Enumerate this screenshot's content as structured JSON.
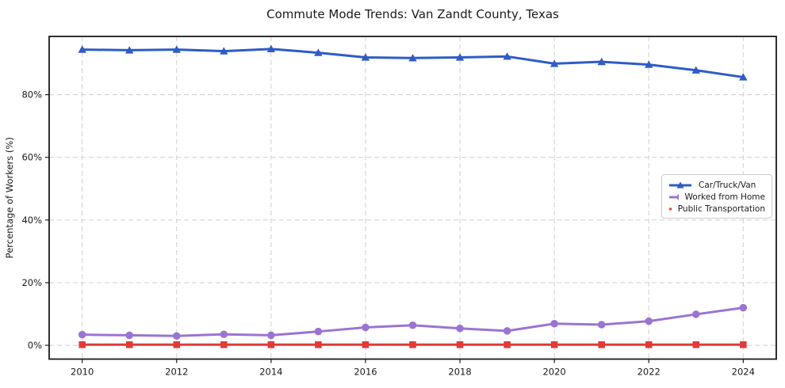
{
  "figure": {
    "title": "Commute Mode Trends: Van Zandt County, Texas",
    "ylabel": "Percentage of Workers (%)"
  },
  "chart_data": {
    "type": "line",
    "title": "Commute Mode Trends: Van Zandt County, Texas",
    "xlabel": "",
    "ylabel": "Percentage of Workers (%)",
    "x": [
      2010,
      2011,
      2012,
      2013,
      2014,
      2015,
      2016,
      2017,
      2018,
      2019,
      2020,
      2021,
      2022,
      2023,
      2024
    ],
    "series": [
      {
        "name": "Car/Truck/Van",
        "color": "#2e5cc6",
        "marker": "triangle",
        "values": [
          94.4,
          94.2,
          94.4,
          93.9,
          94.6,
          93.4,
          91.9,
          91.7,
          91.9,
          92.2,
          89.9,
          90.5,
          89.6,
          87.8,
          85.6
        ]
      },
      {
        "name": "Worked from Home",
        "color": "#9b74d2",
        "marker": "circle",
        "values": [
          3.4,
          3.2,
          3.0,
          3.5,
          3.2,
          4.4,
          5.7,
          6.4,
          5.4,
          4.6,
          6.9,
          6.6,
          7.7,
          9.9,
          12.0
        ]
      },
      {
        "name": "Public Transportation",
        "color": "#e23a36",
        "marker": "square",
        "values": [
          0.2,
          0.2,
          0.2,
          0.2,
          0.2,
          0.2,
          0.2,
          0.2,
          0.2,
          0.2,
          0.2,
          0.2,
          0.2,
          0.2,
          0.2
        ]
      }
    ],
    "x_ticks": {
      "values": [
        2010,
        2012,
        2014,
        2016,
        2018,
        2020,
        2022,
        2024
      ],
      "labels": [
        "2010",
        "2012",
        "2014",
        "2016",
        "2018",
        "2020",
        "2022",
        "2024"
      ]
    },
    "y_ticks": {
      "values": [
        0,
        20,
        40,
        60,
        80
      ],
      "labels": [
        "0%",
        "20%",
        "40%",
        "60%",
        "80%"
      ]
    },
    "xlim": [
      2009.3,
      2024.7
    ],
    "ylim": [
      -4.4,
      98.6
    ],
    "grid": true,
    "legend_position": "center-right",
    "legend_entries": [
      "Car/Truck/Van",
      "Worked from Home",
      "Public Transportation"
    ]
  }
}
